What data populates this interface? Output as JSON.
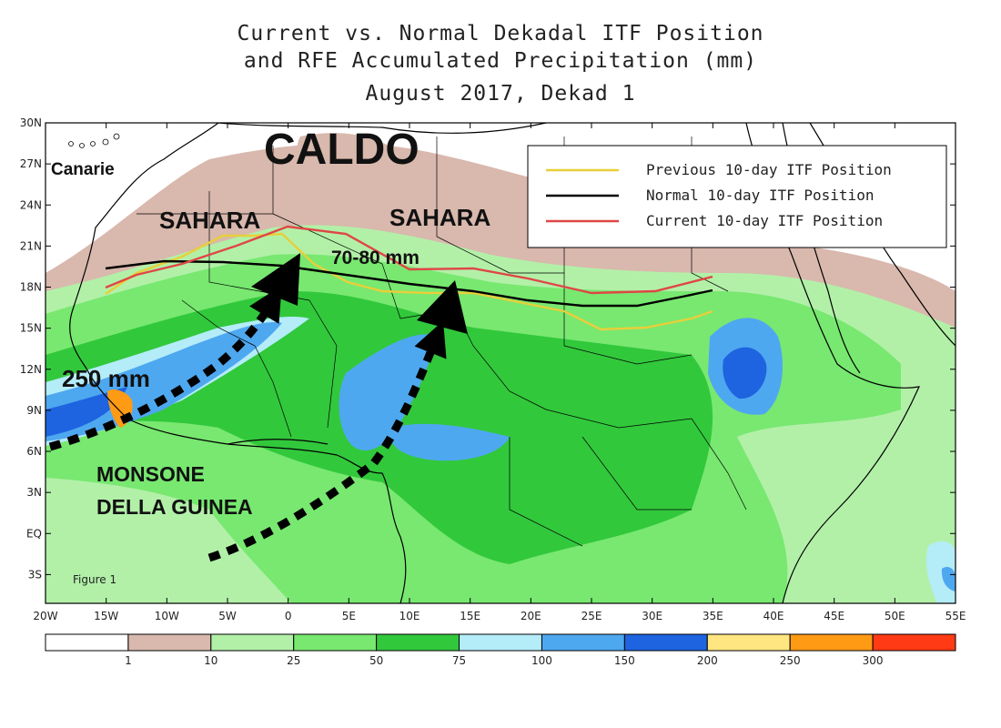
{
  "title": {
    "line1": "Current vs. Normal Dekadal ITF Position",
    "line2": "and RFE Accumulated Precipitation (mm)",
    "line3": "August 2017, Dekad 1"
  },
  "figure_label": "Figure 1",
  "lat_labels": [
    "30N",
    "27N",
    "24N",
    "21N",
    "18N",
    "15N",
    "12N",
    "9N",
    "6N",
    "3N",
    "EQ",
    "3S"
  ],
  "lon_labels": [
    "20W",
    "15W",
    "10W",
    "5W",
    "0",
    "5E",
    "10E",
    "15E",
    "20E",
    "25E",
    "30E",
    "35E",
    "40E",
    "45E",
    "50E",
    "55E"
  ],
  "legend": {
    "previous": "Previous 10-day ITF Position",
    "normal": "Normal 10-day ITF Position",
    "current": "Current 10-day ITF Position"
  },
  "colors": {
    "previous": "#e8cf3a",
    "normal": "#000000",
    "current": "#e04646"
  },
  "annotations": {
    "caldo": "CALDO",
    "canarie": "Canarie",
    "sahara_west": "SAHARA",
    "sahara_east": "SAHARA",
    "rain_east": "70-80 mm",
    "rain_west": "250 mm",
    "monsoon_1": "MONSONE",
    "monsoon_2": "DELLA GUINEA"
  },
  "colorbar": {
    "labels": [
      "1",
      "10",
      "25",
      "50",
      "75",
      "100",
      "150",
      "200",
      "250",
      "300"
    ],
    "colors": [
      "#ffffff",
      "#d9b8ad",
      "#b2f0a8",
      "#78e870",
      "#32c83c",
      "#b4ecf8",
      "#4ea8f0",
      "#1e64e0",
      "#ffe680",
      "#ff9a14",
      "#ff3a14"
    ]
  }
}
